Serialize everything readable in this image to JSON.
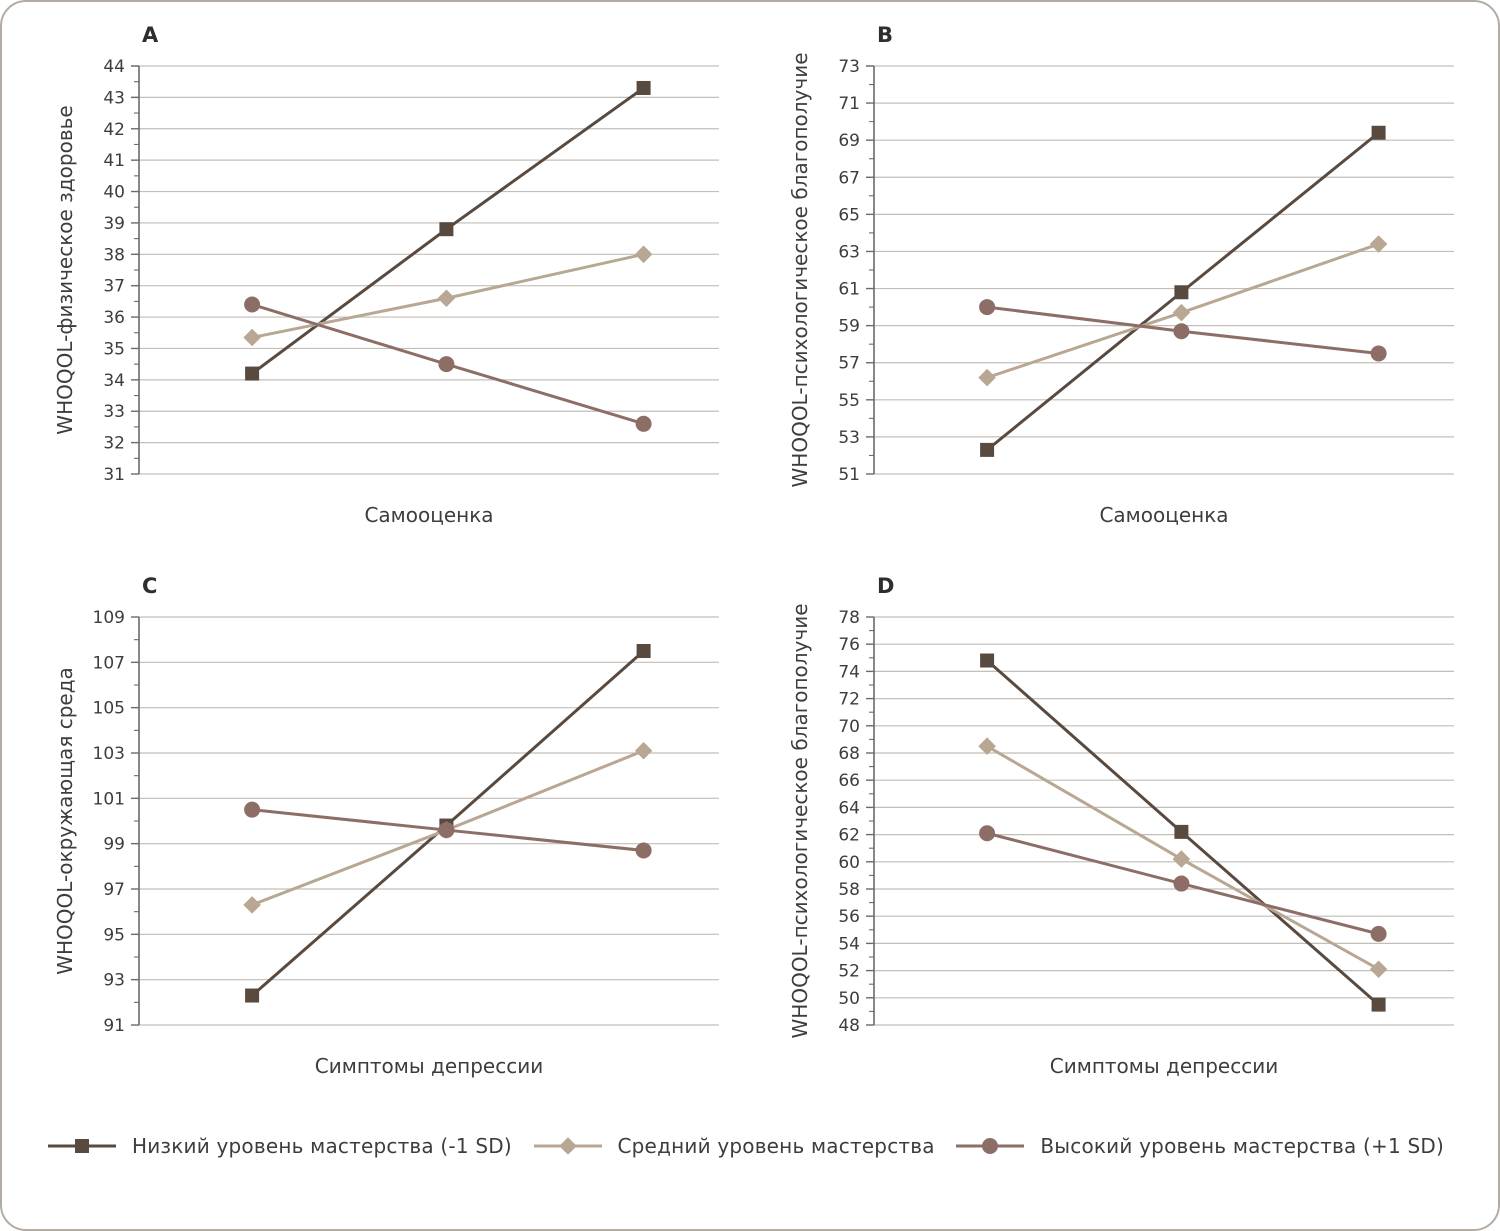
{
  "figure": {
    "background": "#ffffff",
    "border_color": "#b3aca4",
    "grid_color": "#c3beb8",
    "axis_color": "#6e6a66",
    "text_color": "#3d3d3d"
  },
  "series_meta": [
    {
      "name": "Низкий уровень мастерства (-1 SD)",
      "marker": "square",
      "color": "#594a40"
    },
    {
      "name": "Средний уровень мастерства",
      "marker": "diamond",
      "color": "#b7a793"
    },
    {
      "name": "Высокий уровень мастерства (+1 SD)",
      "marker": "circle",
      "color": "#8d6e66"
    }
  ],
  "chart_data": [
    {
      "type": "line",
      "panel": "A",
      "title": "",
      "xlabel": "Самооценка",
      "ylabel": "WHOQOL-физическое здоровье",
      "ylim": [
        31,
        44
      ],
      "ytick_step": 1,
      "minor_step": 0.5,
      "yticks": [
        31,
        32,
        33,
        34,
        35,
        36,
        37,
        38,
        39,
        40,
        41,
        42,
        43,
        44
      ],
      "grid": true,
      "series": [
        {
          "name": "Низкий уровень мастерства (-1 SD)",
          "values": [
            34.2,
            38.8,
            43.3
          ]
        },
        {
          "name": "Средний уровень мастерства",
          "values": [
            35.35,
            36.6,
            38.0
          ]
        },
        {
          "name": "Высокий уровень мастерства (+1 SD)",
          "values": [
            36.4,
            34.5,
            32.6
          ]
        }
      ]
    },
    {
      "type": "line",
      "panel": "B",
      "title": "",
      "xlabel": "Самооценка",
      "ylabel": "WHOQOL-психологическое благополучие",
      "ylim": [
        51,
        73
      ],
      "ytick_step": 2,
      "minor_step": 1,
      "yticks": [
        51,
        53,
        55,
        57,
        59,
        61,
        63,
        65,
        67,
        69,
        71,
        73
      ],
      "grid": true,
      "series": [
        {
          "name": "Низкий уровень мастерства (-1 SD)",
          "values": [
            52.3,
            60.8,
            69.4
          ]
        },
        {
          "name": "Средний уровень мастерства",
          "values": [
            56.2,
            59.7,
            63.4
          ]
        },
        {
          "name": "Высокий уровень мастерства (+1 SD)",
          "values": [
            60.0,
            58.7,
            57.5
          ]
        }
      ]
    },
    {
      "type": "line",
      "panel": "C",
      "title": "",
      "xlabel": "Симптомы депрессии",
      "ylabel": "WHOQOL-окружающая среда",
      "ylim": [
        91,
        109
      ],
      "ytick_step": 2,
      "minor_step": 1,
      "yticks": [
        91,
        93,
        95,
        97,
        99,
        101,
        103,
        105,
        107,
        109
      ],
      "grid": true,
      "series": [
        {
          "name": "Низкий уровень мастерства (-1 SD)",
          "values": [
            92.3,
            99.8,
            107.5
          ]
        },
        {
          "name": "Средний уровень мастерства",
          "values": [
            96.3,
            99.6,
            103.1
          ]
        },
        {
          "name": "Высокий уровень мастерства (+1 SD)",
          "values": [
            100.5,
            99.6,
            98.7
          ]
        }
      ]
    },
    {
      "type": "line",
      "panel": "D",
      "title": "",
      "xlabel": "Симптомы депрессии",
      "ylabel": "WHOQOL-психологическое благополучие",
      "ylim": [
        48,
        78
      ],
      "ytick_step": 2,
      "minor_step": 1,
      "yticks": [
        48,
        50,
        52,
        54,
        56,
        58,
        60,
        62,
        64,
        66,
        68,
        70,
        72,
        74,
        76,
        78
      ],
      "grid": true,
      "series": [
        {
          "name": "Низкий уровень мастерства (-1 SD)",
          "values": [
            74.8,
            62.2,
            49.5
          ]
        },
        {
          "name": "Средний уровень мастерства",
          "values": [
            68.5,
            60.2,
            52.1
          ]
        },
        {
          "name": "Высокий уровень мастерства (+1 SD)",
          "values": [
            62.1,
            58.4,
            54.7
          ]
        }
      ]
    }
  ],
  "legend": {
    "position": "bottom",
    "items": [
      "Низкий уровень мастерства (-1 SD)",
      "Средний уровень мастерства",
      "Высокий уровень мастерства (+1 SD)"
    ]
  }
}
